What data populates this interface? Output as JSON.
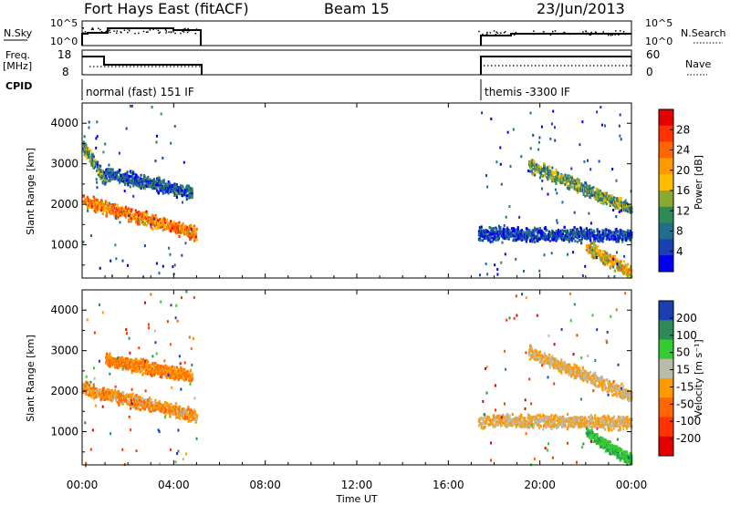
{
  "header": {
    "title": "Fort Hays East (fitACF)",
    "beam": "Beam 15",
    "date": "23/Jun/2013"
  },
  "params": {
    "nsky_label": "N.Sky",
    "nsky_ticks": [
      "10^5",
      "10^0"
    ],
    "nsearch_label": "N.Search",
    "nsearch_ticks": [
      "10^5",
      "10^0"
    ],
    "freq_label_1": "Freq.",
    "freq_label_2": "[MHz]",
    "freq_ticks": [
      "18",
      "8"
    ],
    "nave_label": "Nave",
    "nave_ticks": [
      "60",
      "0"
    ],
    "cpid_label": "CPID",
    "cpid_1": "normal (fast) 151 IF",
    "cpid_2": "themis -3300 IF"
  },
  "panels": {
    "power": {
      "ylabel": "Slant Range [km]",
      "yticks": [
        "4000",
        "3000",
        "2000",
        "1000"
      ],
      "cbar_label": "Power [dB]",
      "cbar_ticks": [
        "28",
        "24",
        "20",
        "16",
        "12",
        "8",
        "4"
      ],
      "cbar_colors": [
        "#e60000",
        "#ff3300",
        "#ff6600",
        "#ff9900",
        "#ffbb00",
        "#88aa33",
        "#2e8b57",
        "#1f6f8b",
        "#1a3fb3",
        "#0000ee"
      ]
    },
    "velocity": {
      "ylabel": "Slant Range [km]",
      "yticks": [
        "4000",
        "3000",
        "2000",
        "1000"
      ],
      "cbar_label": "Velocity [m s⁻¹]",
      "cbar_ticks": [
        "200",
        "100",
        "50",
        "15",
        "-15",
        "-50",
        "-100",
        "-200"
      ],
      "cbar_colors": [
        "#1a3fb3",
        "#2e8b57",
        "#33cc33",
        "#bbbbaa",
        "#ff9900",
        "#ff6600",
        "#ff3300",
        "#e60000"
      ]
    }
  },
  "xaxis": {
    "label": "Time UT",
    "ticks": [
      "00:00",
      "04:00",
      "08:00",
      "12:00",
      "16:00",
      "20:00",
      "00:00"
    ]
  },
  "chart_data": {
    "type": "heatmap",
    "title": "Fort Hays East (fitACF)",
    "xlabel": "Time UT",
    "ylabel": "Slant Range [km]",
    "xlim": [
      0,
      24
    ],
    "ylim": [
      180,
      4500
    ],
    "data_intervals_hours": [
      [
        0,
        5
      ],
      [
        17.3,
        24
      ]
    ],
    "power_colorbar_ticks_db": [
      4,
      8,
      12,
      16,
      20,
      24,
      28
    ],
    "velocity_colorbar_ticks_ms": [
      -200,
      -100,
      -50,
      -15,
      15,
      50,
      100,
      200
    ],
    "echo_bands": [
      {
        "panel": "power",
        "t_start": 0.0,
        "t_end": 5.0,
        "range_start_km": 2100,
        "range_end_km": 1300,
        "value": 24
      },
      {
        "panel": "power",
        "t_start": 0.0,
        "t_end": 1.0,
        "range_start_km": 3500,
        "range_end_km": 2600,
        "value": 14
      },
      {
        "panel": "power",
        "t_start": 1.0,
        "t_end": 4.8,
        "range_start_km": 2800,
        "range_end_km": 2300,
        "value": 8
      },
      {
        "panel": "power",
        "t_start": 17.3,
        "t_end": 24.0,
        "range_start_km": 1300,
        "range_end_km": 1250,
        "value": 6
      },
      {
        "panel": "power",
        "t_start": 19.5,
        "t_end": 24.0,
        "range_start_km": 3000,
        "range_end_km": 1900,
        "value": 14
      },
      {
        "panel": "power",
        "t_start": 22.0,
        "t_end": 24.0,
        "range_start_km": 1000,
        "range_end_km": 300,
        "value": 20
      },
      {
        "panel": "velocity",
        "t_start": 0.0,
        "t_end": 5.0,
        "range_start_km": 2100,
        "range_end_km": 1400,
        "value": -20
      },
      {
        "panel": "velocity",
        "t_start": 1.0,
        "t_end": 4.8,
        "range_start_km": 2800,
        "range_end_km": 2400,
        "value": -30
      },
      {
        "panel": "velocity",
        "t_start": 17.3,
        "t_end": 24.0,
        "range_start_km": 1300,
        "range_end_km": 1250,
        "value": 0
      },
      {
        "panel": "velocity",
        "t_start": 19.5,
        "t_end": 24.0,
        "range_start_km": 3000,
        "range_end_km": 1900,
        "value": 0
      },
      {
        "panel": "velocity",
        "t_start": 22.0,
        "t_end": 24.0,
        "range_start_km": 1000,
        "range_end_km": 300,
        "value": 60
      }
    ]
  }
}
